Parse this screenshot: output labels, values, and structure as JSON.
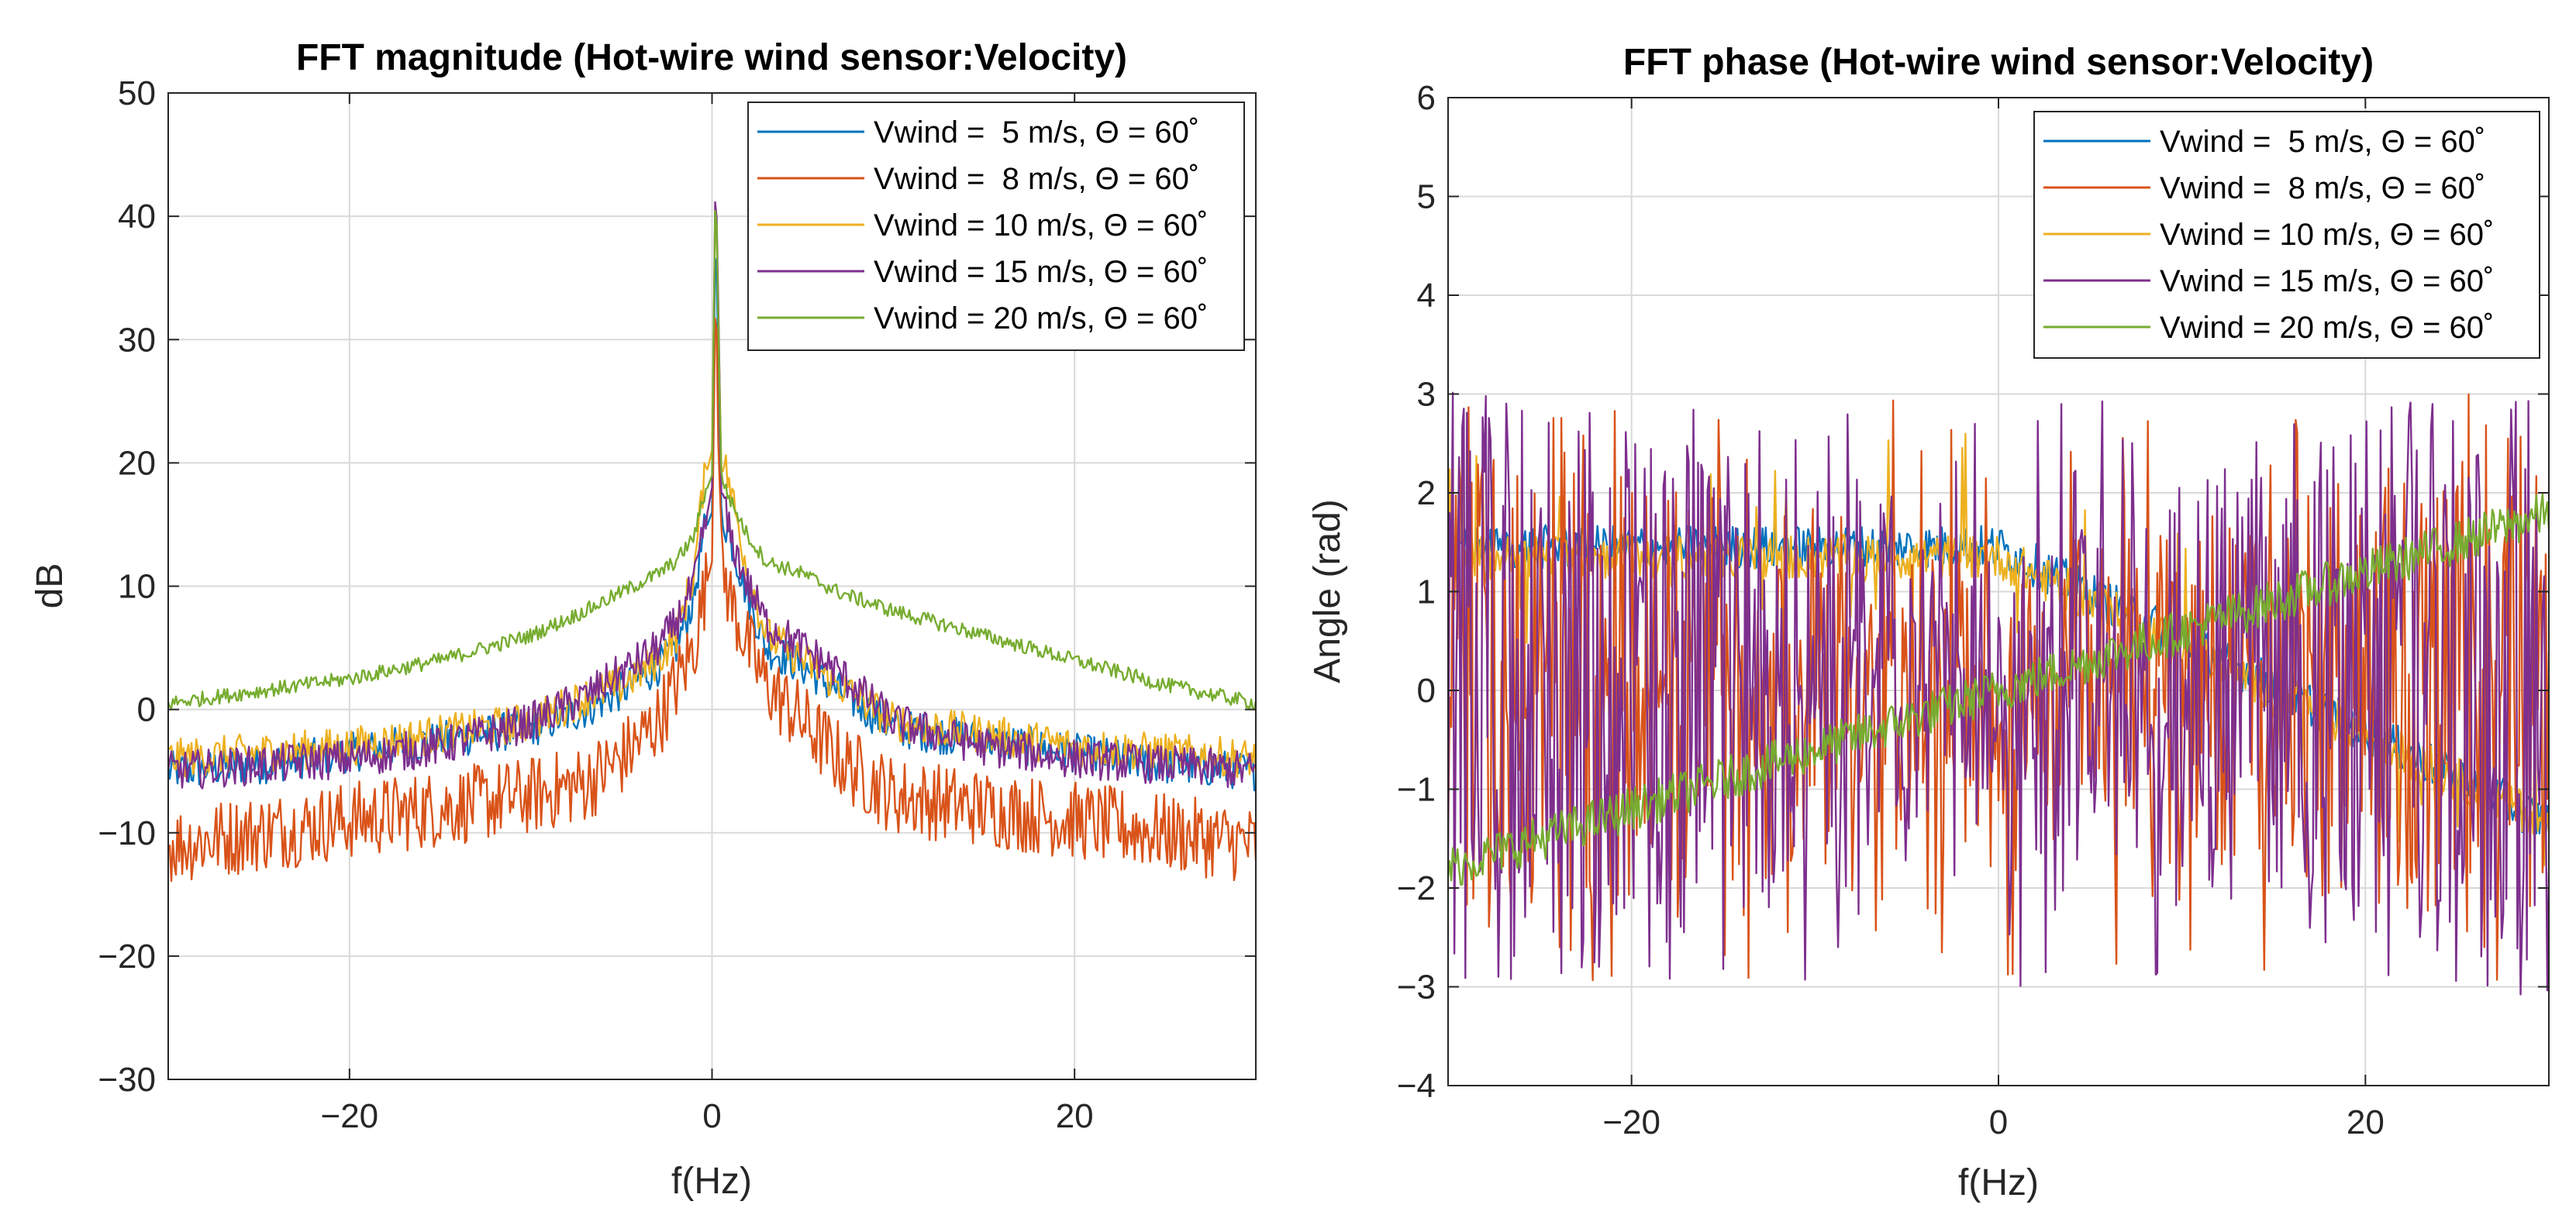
{
  "figure": {
    "colors": {
      "c1": "#0072BD",
      "c2": "#D95319",
      "c3": "#EDB120",
      "c4": "#7E2F8E",
      "c5": "#77AC30",
      "axis": "#262626",
      "grid": "#d9d9d9"
    }
  },
  "chart_data": [
    {
      "type": "line",
      "title": "FFT magnitude (Hot-wire wind sensor:Velocity)",
      "xlabel": "f(Hz)",
      "ylabel": "dB",
      "xlim": [
        -30,
        30
      ],
      "ylim": [
        -30,
        50
      ],
      "xticks": [
        -20,
        0,
        20
      ],
      "xtick_labels": [
        "−20",
        "0",
        "20"
      ],
      "yticks": [
        -30,
        -20,
        -10,
        0,
        10,
        20,
        30,
        40,
        50
      ],
      "ytick_labels": [
        "−30",
        "−20",
        "−10",
        "0",
        "10",
        "20",
        "30",
        "40",
        "50"
      ],
      "grid": true,
      "legend_position": "top-right",
      "series": [
        {
          "name": "Vwind =  5 m/s, Θ = 60˚",
          "color": "#0072BD",
          "x": [
            -30,
            -25,
            -20,
            -15,
            -10,
            -7,
            -5,
            -3,
            -2,
            -1,
            -0.5,
            0,
            0.2,
            0.5,
            1,
            2,
            3,
            5,
            7,
            10,
            15,
            20,
            25,
            30
          ],
          "y": [
            -5,
            -4.5,
            -3.5,
            -2.5,
            -1.5,
            0,
            1.5,
            3.5,
            5,
            9,
            14,
            16,
            40,
            16,
            14,
            9,
            5,
            3.5,
            1.5,
            -1.5,
            -2.5,
            -3.5,
            -4.5,
            -5
          ]
        },
        {
          "name": "Vwind =  8 m/s, Θ = 60˚",
          "color": "#D95319",
          "x": [
            -30,
            -25,
            -20,
            -15,
            -10,
            -7,
            -5,
            -3,
            -2,
            -1,
            -0.5,
            0,
            0.2,
            0.5,
            1,
            2,
            3,
            5,
            7,
            10,
            15,
            20,
            25,
            30
          ],
          "y": [
            -11,
            -10,
            -9,
            -8,
            -7,
            -6,
            -4,
            -1,
            2,
            5,
            9,
            12,
            35,
            12,
            9,
            5,
            2,
            -1,
            -4,
            -7,
            -8,
            -9,
            -10,
            -11
          ]
        },
        {
          "name": "Vwind = 10 m/s, Θ = 60˚",
          "color": "#EDB120",
          "x": [
            -30,
            -25,
            -20,
            -15,
            -10,
            -7,
            -5,
            -3,
            -2,
            -1,
            -0.5,
            0,
            0.2,
            0.5,
            1,
            2,
            3,
            5,
            7,
            10,
            15,
            20,
            25,
            30
          ],
          "y": [
            -4,
            -3.5,
            -3,
            -2,
            -1,
            1,
            2,
            4,
            6,
            11,
            18,
            21,
            43,
            21,
            18,
            11,
            6,
            4,
            2,
            -1,
            -2,
            -3,
            -3.5,
            -4
          ]
        },
        {
          "name": "Vwind = 15 m/s, Θ = 60˚",
          "color": "#7E2F8E",
          "x": [
            -30,
            -25,
            -20,
            -15,
            -10,
            -7,
            -5,
            -3,
            -2,
            -1,
            -0.5,
            0,
            0.2,
            0.5,
            1,
            2,
            3,
            5,
            7,
            10,
            15,
            20,
            25,
            30
          ],
          "y": [
            -5,
            -4.5,
            -4,
            -3,
            -1,
            1,
            3,
            5,
            7,
            10,
            14,
            18,
            45,
            18,
            14,
            10,
            7,
            5,
            3,
            -1,
            -3,
            -4,
            -4.5,
            -5
          ]
        },
        {
          "name": "Vwind = 20 m/s, Θ = 60˚",
          "color": "#77AC30",
          "x": [
            -30,
            -25,
            -20,
            -15,
            -10,
            -7,
            -5,
            -3,
            -2,
            -1,
            -0.5,
            0,
            0.2,
            0.5,
            1,
            2,
            3,
            5,
            7,
            10,
            15,
            20,
            25,
            30
          ],
          "y": [
            0.5,
            1.5,
            2.5,
            4,
            6,
            8,
            9.5,
            11,
            12,
            14,
            17,
            19,
            44,
            19,
            17,
            14,
            12,
            11,
            9.5,
            8,
            6,
            4,
            2,
            0.5
          ]
        }
      ]
    },
    {
      "type": "line",
      "title": "FFT phase (Hot-wire wind sensor:Velocity)",
      "xlabel": "f(Hz)",
      "ylabel": "Angle (rad)",
      "xlim": [
        -30,
        30
      ],
      "ylim": [
        -4,
        6
      ],
      "xticks": [
        -20,
        0,
        20
      ],
      "xtick_labels": [
        "−20",
        "0",
        "20"
      ],
      "yticks": [
        -4,
        -3,
        -2,
        -1,
        0,
        1,
        2,
        3,
        4,
        5,
        6
      ],
      "ytick_labels": [
        "−4",
        "−3",
        "−2",
        "−1",
        "0",
        "1",
        "2",
        "3",
        "4",
        "5",
        "6"
      ],
      "grid": true,
      "legend_position": "top-right",
      "series": [
        {
          "name": "Vwind =  5 m/s, Θ = 60˚",
          "color": "#0072BD",
          "x": [
            -30,
            0,
            30
          ],
          "y": [
            1.45,
            1.45,
            -1.35
          ]
        },
        {
          "name": "Vwind =  8 m/s, Θ = 60˚",
          "color": "#D95319",
          "x": [
            -30,
            30
          ],
          "y": [
            1.0,
            -1.0
          ]
        },
        {
          "name": "Vwind = 10 m/s, Θ = 60˚",
          "color": "#EDB120",
          "x": [
            -30,
            0,
            30
          ],
          "y": [
            1.35,
            1.35,
            -1.35
          ]
        },
        {
          "name": "Vwind = 15 m/s, Θ = 60˚",
          "color": "#7E2F8E",
          "x": [
            -30,
            30
          ],
          "y": [
            -1.8,
            1.8
          ]
        },
        {
          "name": "Vwind = 20 m/s, Θ = 60˚",
          "color": "#77AC30",
          "x": [
            -30,
            0,
            30
          ],
          "y": [
            -1.8,
            0,
            1.8
          ]
        }
      ]
    }
  ]
}
